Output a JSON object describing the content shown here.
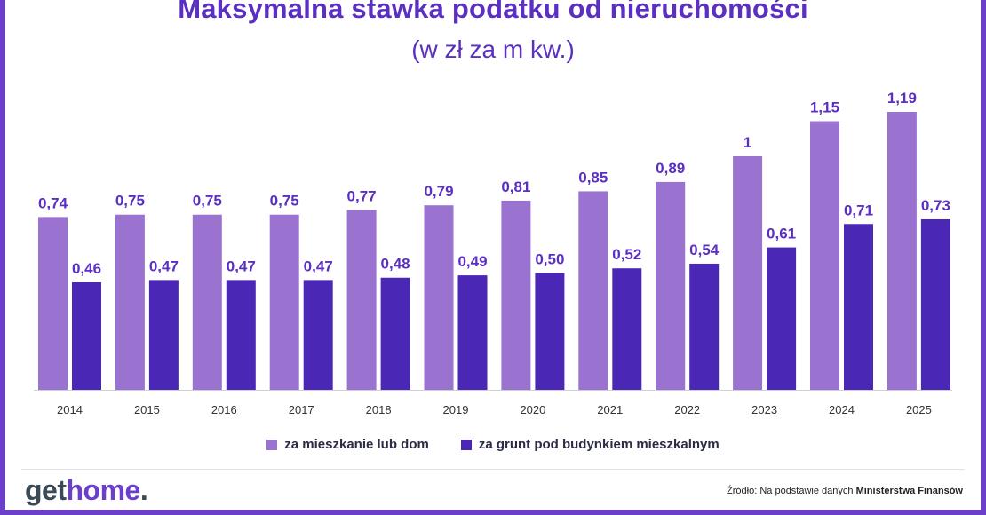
{
  "brand": {
    "logo_part1": "get",
    "logo_part2": "home",
    "logo_part3": ".",
    "accent_color": "#6b3fc9"
  },
  "source": {
    "prefix": "Źródło: Na podstawie danych ",
    "bold": "Ministerstwa Finansów"
  },
  "chart_data": {
    "type": "bar",
    "title": "Maksymalna stawka podatku od nieruchomości",
    "subtitle": "(w zł za m kw.)",
    "categories": [
      "2014",
      "2015",
      "2016",
      "2017",
      "2018",
      "2019",
      "2020",
      "2021",
      "2022",
      "2023",
      "2024",
      "2025"
    ],
    "series": [
      {
        "name": "za mieszkanie lub dom",
        "color": "#9a72d0",
        "values": [
          0.74,
          0.75,
          0.75,
          0.75,
          0.77,
          0.79,
          0.81,
          0.85,
          0.89,
          1,
          1.15,
          1.19
        ],
        "labels": [
          "0,74",
          "0,75",
          "0,75",
          "0,75",
          "0,77",
          "0,79",
          "0,81",
          "0,85",
          "0,89",
          "1",
          "1,15",
          "1,19"
        ]
      },
      {
        "name": "za grunt pod budynkiem mieszkalnym",
        "color": "#4a28b5",
        "values": [
          0.46,
          0.47,
          0.47,
          0.47,
          0.48,
          0.49,
          0.5,
          0.52,
          0.54,
          0.61,
          0.71,
          0.73
        ],
        "labels": [
          "0,46",
          "0,47",
          "0,47",
          "0,47",
          "0,48",
          "0,49",
          "0,50",
          "0,52",
          "0,54",
          "0,61",
          "0,71",
          "0,73"
        ]
      }
    ],
    "ylim": [
      0,
      1.19
    ],
    "grid": false,
    "legend_position": "bottom-center",
    "label_color": "#5a2fc2"
  }
}
